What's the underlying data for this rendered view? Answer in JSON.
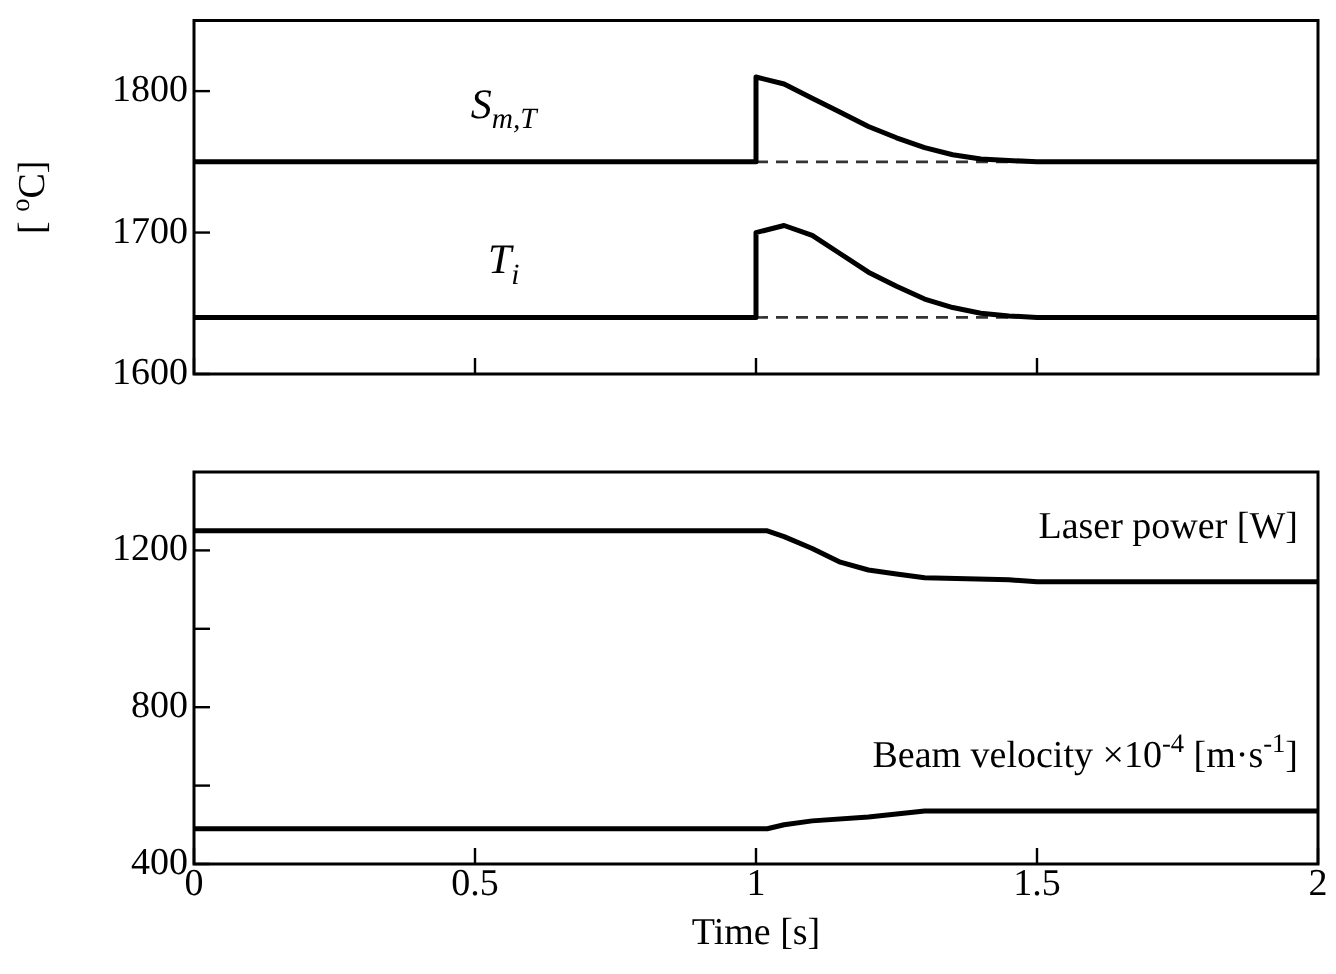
{
  "chart_data": [
    {
      "type": "line",
      "ylabel": "[ $^{o}$C]",
      "xlim": [
        0,
        2
      ],
      "xticks": [
        {
          "value": 0,
          "label": null
        },
        {
          "value": 0.5,
          "label": null
        },
        {
          "value": 1,
          "label": null
        },
        {
          "value": 1.5,
          "label": null
        },
        {
          "value": 2,
          "label": null
        }
      ],
      "ylim": [
        1600,
        1850
      ],
      "yticks": [
        1600,
        1700,
        1800
      ],
      "tick_labels": "y",
      "grid": false,
      "legend": false,
      "marker": "none",
      "series": [
        {
          "name": "S$_{m,T}$",
          "color": "#000000",
          "x": [
            0,
            1,
            1,
            1.05,
            1.1,
            1.15,
            1.2,
            1.25,
            1.3,
            1.35,
            1.4,
            1.5,
            1.6,
            2
          ],
          "values": [
            1750,
            1750,
            1810,
            1805,
            1795,
            1785,
            1775,
            1767,
            1760,
            1755,
            1752,
            1750,
            1750,
            1750
          ]
        },
        {
          "color": "#333333",
          "line_style": "dashed",
          "x": [
            1,
            1.6
          ],
          "values": [
            1750,
            1750
          ]
        },
        {
          "name": "T$_{i}$",
          "color": "#000000",
          "x": [
            0,
            1,
            1,
            1.05,
            1.1,
            1.15,
            1.2,
            1.25,
            1.3,
            1.35,
            1.4,
            1.45,
            1.5,
            2
          ],
          "values": [
            1640,
            1640,
            1700,
            1705,
            1698,
            1685,
            1672,
            1662,
            1653,
            1647,
            1643,
            1641,
            1640,
            1640
          ]
        },
        {
          "color": "#333333",
          "line_style": "dashed",
          "x": [
            1,
            1.45
          ],
          "values": [
            1640,
            1640
          ]
        }
      ]
    },
    {
      "type": "line",
      "xlabel": "Time [s]",
      "xlim": [
        0,
        2
      ],
      "xticks": [
        0,
        0.5,
        1,
        1.5,
        2
      ],
      "ylim": [
        400,
        1400
      ],
      "yticks": [
        400,
        {
          "value": 600,
          "label": null
        },
        800,
        {
          "value": 1000,
          "label": null
        },
        1200
      ],
      "grid": false,
      "legend": false,
      "marker": "none",
      "series": [
        {
          "name": "Laser power [W]",
          "color": "#000000",
          "x": [
            0,
            1.02,
            1.05,
            1.1,
            1.15,
            1.2,
            1.25,
            1.3,
            1.45,
            1.5,
            2
          ],
          "values": [
            1250,
            1250,
            1235,
            1205,
            1170,
            1150,
            1140,
            1130,
            1125,
            1120,
            1120
          ]
        },
        {
          "name": "Beam velocity ×10$^{-4}$ [m·s$^{-1}$]",
          "color": "#000000",
          "x": [
            0,
            1.02,
            1.05,
            1.1,
            1.2,
            1.3,
            2
          ],
          "values": [
            490,
            490,
            500,
            510,
            520,
            535,
            535
          ]
        }
      ]
    }
  ]
}
